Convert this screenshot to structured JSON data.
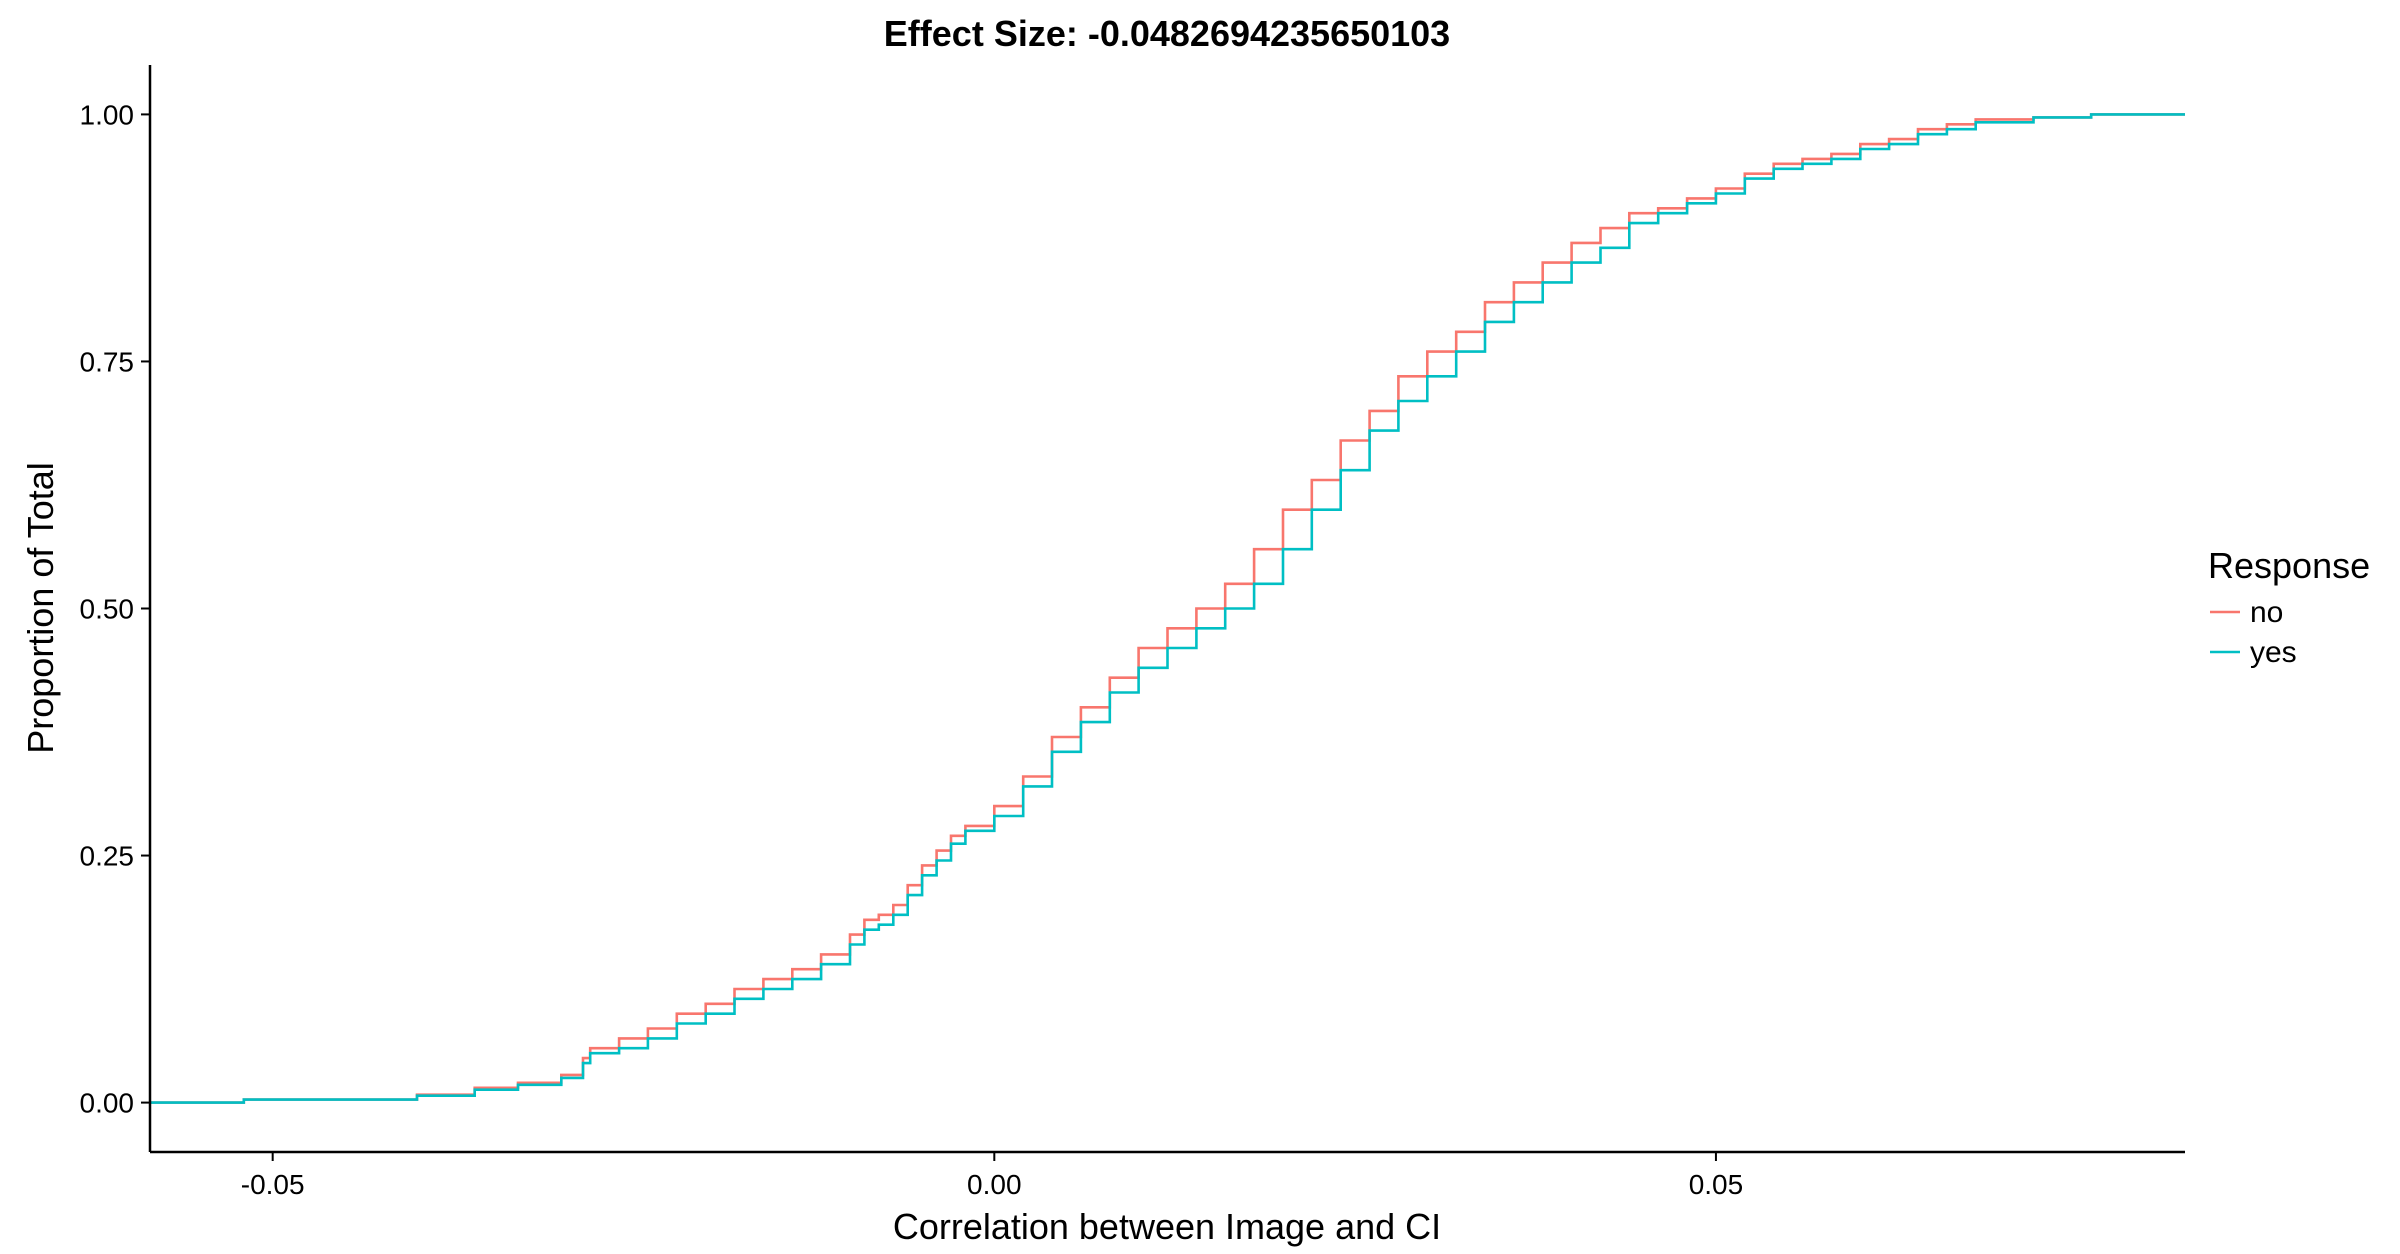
{
  "chart_data": {
    "type": "line",
    "title": "Effect Size: -0.0482694235650103",
    "xlabel": "Correlation between Image and CI",
    "ylabel": "Proportion of Total",
    "xlim": [
      -0.0585,
      0.0825
    ],
    "ylim": [
      -0.05,
      1.05
    ],
    "x_ticks": [
      {
        "value": -0.05,
        "label": "-0.05"
      },
      {
        "value": 0.0,
        "label": "0.00"
      },
      {
        "value": 0.05,
        "label": "0.05"
      }
    ],
    "y_ticks": [
      {
        "value": 0.0,
        "label": "0.00"
      },
      {
        "value": 0.25,
        "label": "0.25"
      },
      {
        "value": 0.5,
        "label": "0.50"
      },
      {
        "value": 0.75,
        "label": "0.75"
      },
      {
        "value": 1.0,
        "label": "1.00"
      }
    ],
    "grid": false,
    "legend": {
      "title": "Response",
      "position": "right"
    },
    "series": [
      {
        "name": "no",
        "color": "#F8766D",
        "x": [
          -0.0585,
          -0.052,
          -0.0425,
          -0.04,
          -0.036,
          -0.033,
          -0.03,
          -0.0285,
          -0.028,
          -0.026,
          -0.024,
          -0.022,
          -0.02,
          -0.018,
          -0.016,
          -0.014,
          -0.012,
          -0.01,
          -0.009,
          -0.008,
          -0.007,
          -0.006,
          -0.005,
          -0.004,
          -0.003,
          -0.002,
          0.0,
          0.002,
          0.004,
          0.006,
          0.008,
          0.01,
          0.012,
          0.014,
          0.016,
          0.018,
          0.02,
          0.022,
          0.024,
          0.026,
          0.028,
          0.03,
          0.032,
          0.034,
          0.036,
          0.038,
          0.04,
          0.042,
          0.044,
          0.046,
          0.048,
          0.05,
          0.052,
          0.054,
          0.056,
          0.058,
          0.06,
          0.062,
          0.064,
          0.066,
          0.068,
          0.072,
          0.076,
          0.0825
        ],
        "y": [
          0.0,
          0.003,
          0.003,
          0.008,
          0.015,
          0.02,
          0.028,
          0.045,
          0.055,
          0.065,
          0.075,
          0.09,
          0.1,
          0.115,
          0.125,
          0.135,
          0.15,
          0.17,
          0.185,
          0.19,
          0.2,
          0.22,
          0.24,
          0.255,
          0.27,
          0.28,
          0.3,
          0.33,
          0.37,
          0.4,
          0.43,
          0.46,
          0.48,
          0.5,
          0.525,
          0.56,
          0.6,
          0.63,
          0.67,
          0.7,
          0.735,
          0.76,
          0.78,
          0.81,
          0.83,
          0.85,
          0.87,
          0.885,
          0.9,
          0.905,
          0.915,
          0.925,
          0.94,
          0.95,
          0.955,
          0.96,
          0.97,
          0.975,
          0.985,
          0.99,
          0.995,
          0.997,
          1.0,
          1.0
        ]
      },
      {
        "name": "yes",
        "color": "#00BFC4",
        "x": [
          -0.0585,
          -0.052,
          -0.0425,
          -0.04,
          -0.036,
          -0.033,
          -0.03,
          -0.0285,
          -0.028,
          -0.026,
          -0.024,
          -0.022,
          -0.02,
          -0.018,
          -0.016,
          -0.014,
          -0.012,
          -0.01,
          -0.009,
          -0.008,
          -0.007,
          -0.006,
          -0.005,
          -0.004,
          -0.003,
          -0.002,
          0.0,
          0.002,
          0.004,
          0.006,
          0.008,
          0.01,
          0.012,
          0.014,
          0.016,
          0.018,
          0.02,
          0.022,
          0.024,
          0.026,
          0.028,
          0.03,
          0.032,
          0.034,
          0.036,
          0.038,
          0.04,
          0.042,
          0.044,
          0.046,
          0.048,
          0.05,
          0.052,
          0.054,
          0.056,
          0.058,
          0.06,
          0.062,
          0.064,
          0.066,
          0.068,
          0.072,
          0.076,
          0.0825
        ],
        "y": [
          0.0,
          0.003,
          0.003,
          0.007,
          0.013,
          0.018,
          0.025,
          0.04,
          0.05,
          0.055,
          0.065,
          0.08,
          0.09,
          0.105,
          0.115,
          0.125,
          0.14,
          0.16,
          0.175,
          0.18,
          0.19,
          0.21,
          0.23,
          0.245,
          0.262,
          0.275,
          0.29,
          0.32,
          0.355,
          0.385,
          0.415,
          0.44,
          0.46,
          0.48,
          0.5,
          0.525,
          0.56,
          0.6,
          0.64,
          0.68,
          0.71,
          0.735,
          0.76,
          0.79,
          0.81,
          0.83,
          0.85,
          0.865,
          0.89,
          0.9,
          0.91,
          0.92,
          0.935,
          0.945,
          0.95,
          0.955,
          0.965,
          0.97,
          0.98,
          0.985,
          0.992,
          0.997,
          1.0,
          1.0
        ]
      }
    ]
  }
}
